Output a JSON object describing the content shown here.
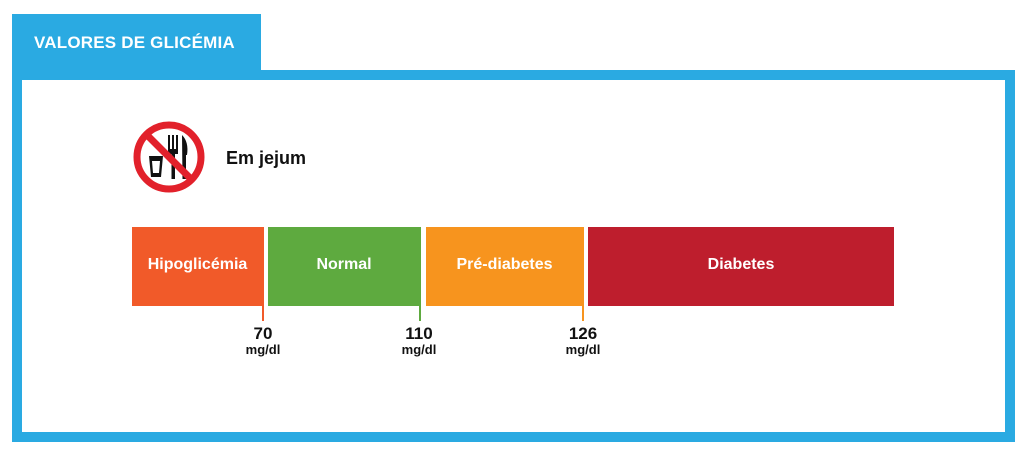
{
  "header": {
    "title": "VALORES DE GLICÉMIA"
  },
  "section": {
    "icon": "no-eating-drinking-icon",
    "label": "Em jejum"
  },
  "colors": {
    "accent": "#2aaae2",
    "hipoglicemia": "#f15a29",
    "normal": "#5eaa3f",
    "prediabetes": "#f7941e",
    "diabetes": "#be1e2d",
    "icon_red": "#e2212b"
  },
  "scale": {
    "segments": [
      {
        "label": "Hipoglicémia"
      },
      {
        "label": "Normal"
      },
      {
        "label": "Pré-diabetes"
      },
      {
        "label": "Diabetes"
      }
    ],
    "thresholds": [
      {
        "value": "70",
        "unit": "mg/dl"
      },
      {
        "value": "110",
        "unit": "mg/dl"
      },
      {
        "value": "126",
        "unit": "mg/dl"
      }
    ]
  }
}
